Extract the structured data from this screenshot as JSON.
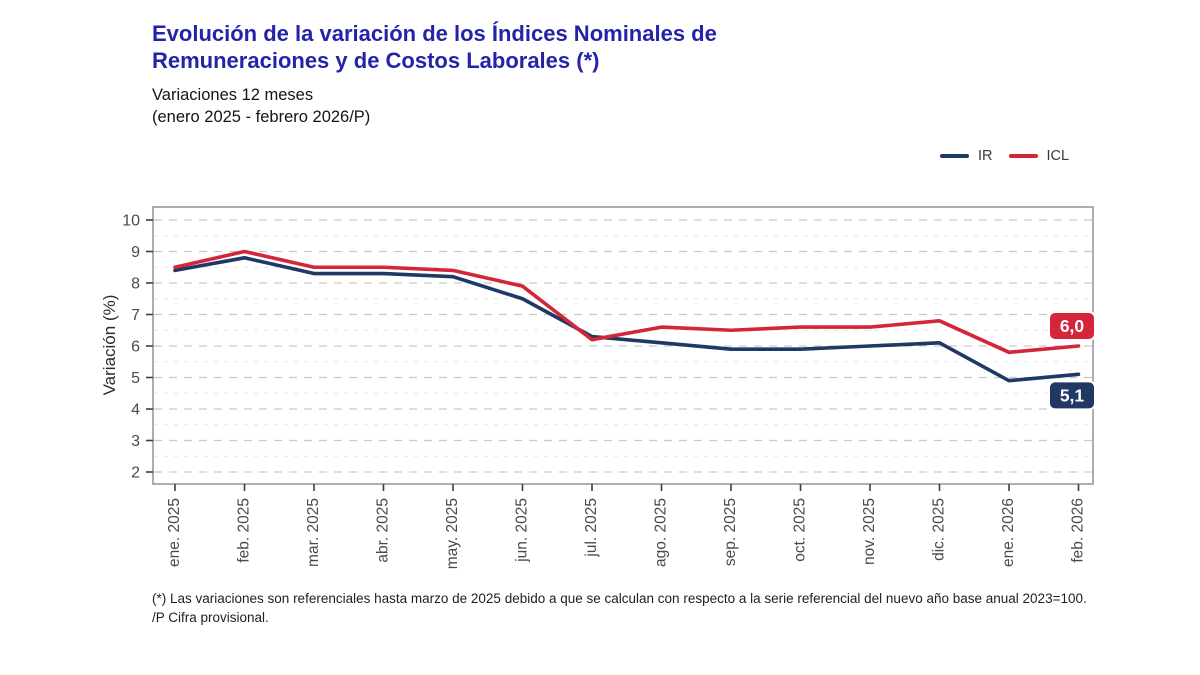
{
  "title": {
    "line1": "Evolución de la variación de los Índices Nominales de",
    "line2": "Remuneraciones y de Costos Laborales (*)"
  },
  "subtitle": {
    "line1": "Variaciones 12 meses",
    "line2": "(enero 2025 - febrero 2026/P)"
  },
  "legend": [
    {
      "label": "IR",
      "color": "#1f3864"
    },
    {
      "label": "ICL",
      "color": "#d52639"
    }
  ],
  "colors": {
    "title_blue": "#2424a8",
    "ir_navy": "#1f3864",
    "icl_red": "#d52639",
    "grid_major": "#c9c9c9",
    "grid_minor": "#e6e6e6",
    "panel_border": "#999999",
    "tick": "#3d3d3d",
    "tick_label": "#4a4a4a"
  },
  "chart_data": {
    "type": "line",
    "categories": [
      "ene. 2025",
      "feb. 2025",
      "mar. 2025",
      "abr. 2025",
      "may. 2025",
      "jun. 2025",
      "jul. 2025",
      "ago. 2025",
      "sep. 2025",
      "oct. 2025",
      "nov. 2025",
      "dic. 2025",
      "ene. 2026",
      "feb. 2026"
    ],
    "series": [
      {
        "name": "IR",
        "color": "#1f3864",
        "values": [
          8.4,
          8.8,
          8.3,
          8.3,
          8.2,
          7.5,
          6.3,
          6.1,
          5.9,
          5.9,
          6.0,
          6.1,
          4.9,
          5.1
        ],
        "end_label": "5,1",
        "end_label_position": "below"
      },
      {
        "name": "ICL",
        "color": "#d52639",
        "values": [
          8.5,
          9.0,
          8.5,
          8.5,
          8.4,
          7.9,
          6.2,
          6.6,
          6.5,
          6.6,
          6.6,
          6.8,
          5.8,
          6.0
        ],
        "end_label": "6,0",
        "end_label_position": "above"
      }
    ],
    "ylabel": "Variación (%)",
    "ylim": [
      2,
      10
    ],
    "ytick_step": 1,
    "grid": "horizontal dashed, minor lines at 0.5 steps",
    "legend_position": "top-right"
  },
  "footnote": {
    "line1": "(*) Las variaciones son referenciales hasta marzo de 2025 debido a que se calculan con respecto a la serie referencial del nuevo año base anual 2023=100.",
    "line2": "/P Cifra provisional."
  }
}
